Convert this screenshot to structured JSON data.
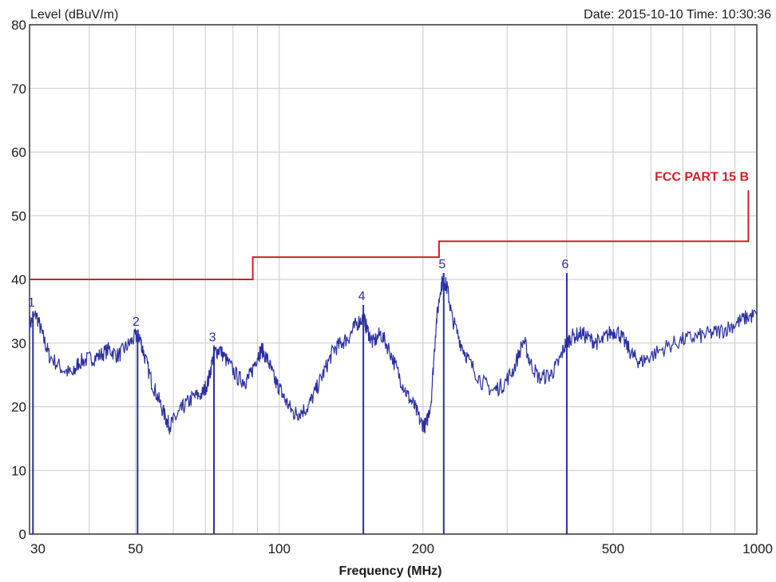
{
  "header": {
    "y_axis_title": "Level (dBuV/m)",
    "datetime": "Date: 2015-10-10  Time: 10:30:36"
  },
  "chart_data": {
    "type": "line",
    "xlabel": "Frequency (MHz)",
    "ylabel": "Level (dBuV/m)",
    "x_scale": "log",
    "xlim": [
      30,
      1000
    ],
    "ylim": [
      0,
      80
    ],
    "y_ticks": [
      0,
      10,
      20,
      30,
      40,
      50,
      60,
      70,
      80
    ],
    "x_tick_labels": [
      30,
      50,
      100,
      200,
      500,
      1000
    ],
    "x_minor_gridlines": [
      40,
      60,
      70,
      80,
      90,
      300,
      400,
      600,
      700,
      800,
      900
    ],
    "grid": true,
    "colors": {
      "trace": "#2b2fa0",
      "limit": "#d0202a",
      "grid": "#c8c8c8",
      "axis": "#333333"
    },
    "limit_line": {
      "label": "FCC PART 15 B",
      "points": [
        [
          30,
          40
        ],
        [
          88,
          40
        ],
        [
          88,
          43.5
        ],
        [
          216,
          43.5
        ],
        [
          216,
          46
        ],
        [
          960,
          46
        ],
        [
          960,
          54
        ]
      ]
    },
    "markers": [
      {
        "label": "1",
        "freq": 30.5,
        "level": 35
      },
      {
        "label": "2",
        "freq": 50.5,
        "level": 32
      },
      {
        "label": "3",
        "freq": 73,
        "level": 29.5
      },
      {
        "label": "4",
        "freq": 150,
        "level": 36
      },
      {
        "label": "5",
        "freq": 221,
        "level": 41
      },
      {
        "label": "6",
        "freq": 400,
        "level": 41
      }
    ],
    "series": [
      {
        "points": [
          [
            30,
            33
          ],
          [
            31,
            34.5
          ],
          [
            32,
            31
          ],
          [
            33,
            28
          ],
          [
            35,
            26
          ],
          [
            37,
            25
          ],
          [
            38,
            27
          ],
          [
            40,
            27.5
          ],
          [
            42,
            28
          ],
          [
            44,
            29
          ],
          [
            46,
            28
          ],
          [
            48,
            29.5
          ],
          [
            50,
            31
          ],
          [
            51,
            31
          ],
          [
            52,
            28.5
          ],
          [
            54,
            24
          ],
          [
            56,
            21
          ],
          [
            58,
            18
          ],
          [
            59,
            17
          ],
          [
            61,
            18.5
          ],
          [
            63,
            20
          ],
          [
            66,
            21.5
          ],
          [
            69,
            22
          ],
          [
            71,
            24
          ],
          [
            73,
            28.5
          ],
          [
            75,
            29
          ],
          [
            78,
            27
          ],
          [
            82,
            24.5
          ],
          [
            85,
            24
          ],
          [
            87,
            25
          ],
          [
            90,
            28
          ],
          [
            92,
            29
          ],
          [
            95,
            27
          ],
          [
            98,
            24
          ],
          [
            100,
            23
          ],
          [
            103,
            21
          ],
          [
            107,
            19
          ],
          [
            110,
            19
          ],
          [
            115,
            20
          ],
          [
            120,
            23
          ],
          [
            125,
            26
          ],
          [
            130,
            29
          ],
          [
            135,
            30
          ],
          [
            140,
            31
          ],
          [
            145,
            33
          ],
          [
            150,
            34
          ],
          [
            153,
            32
          ],
          [
            157,
            30
          ],
          [
            163,
            31.5
          ],
          [
            170,
            29
          ],
          [
            178,
            25
          ],
          [
            185,
            22
          ],
          [
            192,
            20
          ],
          [
            198,
            17.5
          ],
          [
            203,
            17
          ],
          [
            208,
            21
          ],
          [
            213,
            33
          ],
          [
            218,
            39
          ],
          [
            221,
            40
          ],
          [
            225,
            38.5
          ],
          [
            230,
            34
          ],
          [
            240,
            30
          ],
          [
            250,
            27
          ],
          [
            265,
            24
          ],
          [
            280,
            22.5
          ],
          [
            295,
            23.5
          ],
          [
            310,
            26
          ],
          [
            325,
            30.5
          ],
          [
            335,
            27
          ],
          [
            350,
            24.5
          ],
          [
            370,
            25
          ],
          [
            385,
            27
          ],
          [
            398,
            30
          ],
          [
            410,
            31
          ],
          [
            430,
            31.5
          ],
          [
            450,
            30.5
          ],
          [
            470,
            30
          ],
          [
            490,
            31.5
          ],
          [
            510,
            32
          ],
          [
            530,
            30
          ],
          [
            550,
            28
          ],
          [
            570,
            27
          ],
          [
            600,
            28
          ],
          [
            650,
            29.5
          ],
          [
            700,
            30.5
          ],
          [
            750,
            31
          ],
          [
            800,
            31.5
          ],
          [
            850,
            32
          ],
          [
            900,
            33
          ],
          [
            950,
            34
          ],
          [
            1000,
            34.5
          ]
        ]
      }
    ]
  }
}
